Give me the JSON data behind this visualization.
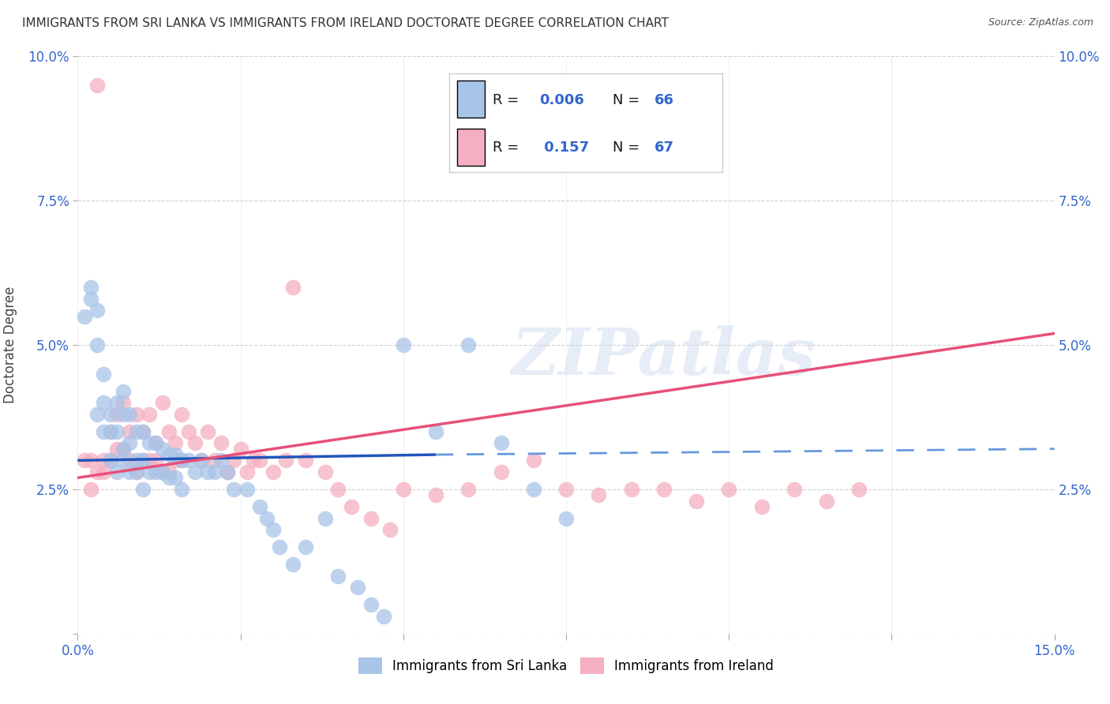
{
  "title": "IMMIGRANTS FROM SRI LANKA VS IMMIGRANTS FROM IRELAND DOCTORATE DEGREE CORRELATION CHART",
  "source": "Source: ZipAtlas.com",
  "ylabel": "Doctorate Degree",
  "xlim": [
    0.0,
    0.15
  ],
  "ylim": [
    0.0,
    0.1
  ],
  "xticks": [
    0.0,
    0.025,
    0.05,
    0.075,
    0.1,
    0.125,
    0.15
  ],
  "xtick_labels": [
    "0.0%",
    "",
    "",
    "",
    "",
    "",
    "15.0%"
  ],
  "yticks": [
    0.0,
    0.025,
    0.05,
    0.075,
    0.1
  ],
  "ytick_labels": [
    "",
    "2.5%",
    "5.0%",
    "7.5%",
    "10.0%"
  ],
  "series1_color": "#a8c4e8",
  "series2_color": "#f4afc0",
  "trend1_solid_color": "#2255bb",
  "trend1_dash_color": "#6699dd",
  "trend2_color": "#e8507a",
  "watermark_text": "ZIPatlas",
  "background_color": "#ffffff",
  "legend_label1": "Immigrants from Sri Lanka",
  "legend_label2": "Immigrants from Ireland",
  "sri_lanka_x": [
    0.001,
    0.002,
    0.002,
    0.003,
    0.003,
    0.003,
    0.004,
    0.004,
    0.004,
    0.005,
    0.005,
    0.005,
    0.006,
    0.006,
    0.006,
    0.007,
    0.007,
    0.007,
    0.007,
    0.008,
    0.008,
    0.008,
    0.009,
    0.009,
    0.009,
    0.01,
    0.01,
    0.01,
    0.011,
    0.011,
    0.012,
    0.012,
    0.013,
    0.013,
    0.014,
    0.014,
    0.015,
    0.015,
    0.016,
    0.016,
    0.017,
    0.018,
    0.019,
    0.02,
    0.021,
    0.022,
    0.023,
    0.024,
    0.026,
    0.028,
    0.029,
    0.03,
    0.031,
    0.033,
    0.035,
    0.038,
    0.04,
    0.043,
    0.045,
    0.047,
    0.05,
    0.055,
    0.06,
    0.065,
    0.07,
    0.075
  ],
  "sri_lanka_y": [
    0.055,
    0.06,
    0.058,
    0.056,
    0.038,
    0.05,
    0.045,
    0.035,
    0.04,
    0.038,
    0.035,
    0.03,
    0.04,
    0.035,
    0.028,
    0.038,
    0.042,
    0.032,
    0.03,
    0.038,
    0.033,
    0.028,
    0.035,
    0.03,
    0.028,
    0.035,
    0.03,
    0.025,
    0.033,
    0.028,
    0.033,
    0.028,
    0.032,
    0.028,
    0.031,
    0.027,
    0.031,
    0.027,
    0.03,
    0.025,
    0.03,
    0.028,
    0.03,
    0.028,
    0.028,
    0.03,
    0.028,
    0.025,
    0.025,
    0.022,
    0.02,
    0.018,
    0.015,
    0.012,
    0.015,
    0.02,
    0.01,
    0.008,
    0.005,
    0.003,
    0.05,
    0.035,
    0.05,
    0.033,
    0.025,
    0.02
  ],
  "ireland_x": [
    0.001,
    0.002,
    0.002,
    0.003,
    0.003,
    0.004,
    0.004,
    0.005,
    0.005,
    0.006,
    0.006,
    0.007,
    0.007,
    0.008,
    0.008,
    0.009,
    0.009,
    0.01,
    0.01,
    0.011,
    0.011,
    0.012,
    0.012,
    0.013,
    0.013,
    0.014,
    0.014,
    0.015,
    0.015,
    0.016,
    0.016,
    0.017,
    0.018,
    0.019,
    0.02,
    0.021,
    0.022,
    0.023,
    0.024,
    0.025,
    0.026,
    0.027,
    0.028,
    0.03,
    0.032,
    0.033,
    0.035,
    0.038,
    0.04,
    0.042,
    0.045,
    0.048,
    0.05,
    0.055,
    0.06,
    0.065,
    0.07,
    0.075,
    0.08,
    0.085,
    0.09,
    0.095,
    0.1,
    0.105,
    0.11,
    0.115,
    0.12
  ],
  "ireland_y": [
    0.03,
    0.025,
    0.03,
    0.028,
    0.095,
    0.03,
    0.028,
    0.035,
    0.03,
    0.038,
    0.032,
    0.04,
    0.032,
    0.035,
    0.03,
    0.038,
    0.028,
    0.035,
    0.03,
    0.038,
    0.03,
    0.033,
    0.03,
    0.04,
    0.028,
    0.035,
    0.028,
    0.033,
    0.03,
    0.038,
    0.03,
    0.035,
    0.033,
    0.03,
    0.035,
    0.03,
    0.033,
    0.028,
    0.03,
    0.032,
    0.028,
    0.03,
    0.03,
    0.028,
    0.03,
    0.06,
    0.03,
    0.028,
    0.025,
    0.022,
    0.02,
    0.018,
    0.025,
    0.024,
    0.025,
    0.028,
    0.03,
    0.025,
    0.024,
    0.025,
    0.025,
    0.023,
    0.025,
    0.022,
    0.025,
    0.023,
    0.025
  ],
  "trend1_x_solid_end": 0.055,
  "trend2_start_y": 0.03,
  "trend2_end_y": 0.052
}
